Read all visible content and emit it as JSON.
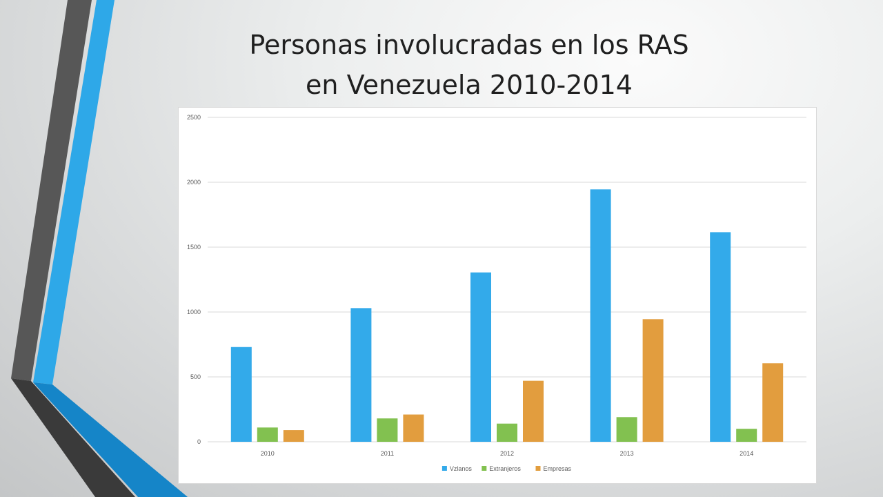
{
  "slide": {
    "title_line1": "Personas involucradas en los RAS",
    "title_line2": "en Venezuela 2010-2014"
  },
  "colors": {
    "Vzlanos": "#33aaea",
    "Extranjeros": "#82c150",
    "Empresas": "#e29d3e",
    "gridline": "#d9d9d9",
    "deco_dark": "#4a4a4a",
    "deco_blue": "#2ea8e8"
  },
  "chart_data": {
    "type": "bar",
    "categories": [
      "2010",
      "2011",
      "2012",
      "2013",
      "2014"
    ],
    "series": [
      {
        "name": "Vzlanos",
        "values": [
          730,
          1030,
          1305,
          1945,
          1615
        ]
      },
      {
        "name": "Extranjeros",
        "values": [
          110,
          180,
          140,
          190,
          100
        ]
      },
      {
        "name": "Empresas",
        "values": [
          90,
          210,
          470,
          945,
          605
        ]
      }
    ],
    "ylim": [
      0,
      2500
    ],
    "yticks": [
      "0",
      "500",
      "1000",
      "1500",
      "2000",
      "2500"
    ],
    "grid": true,
    "legend_position": "bottom"
  }
}
